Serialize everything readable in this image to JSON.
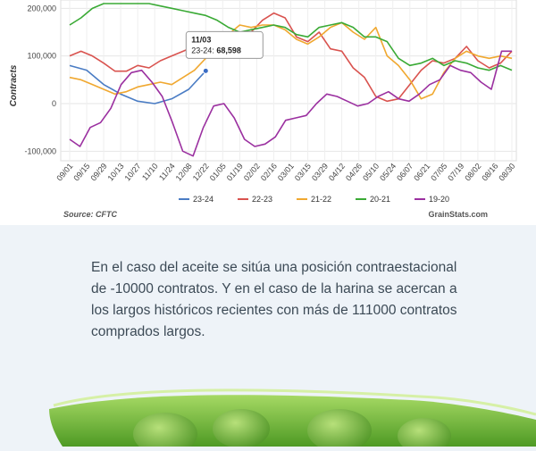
{
  "chart_data": {
    "type": "line",
    "ylabel": "Contracts",
    "y_ticks": [
      "-100,000",
      "0",
      "100,000",
      "200,000"
    ],
    "ylim": [
      -120000,
      210000
    ],
    "x_ticks": [
      "09/01",
      "09/15",
      "09/29",
      "10/13",
      "10/27",
      "11/10",
      "11/24",
      "12/08",
      "12/22",
      "01/05",
      "01/19",
      "02/02",
      "02/16",
      "03/01",
      "03/15",
      "03/29",
      "04/12",
      "04/26",
      "05/10",
      "05/24",
      "06/07",
      "06/21",
      "07/05",
      "07/19",
      "08/02",
      "08/16",
      "08/30"
    ],
    "grid": true,
    "legend_position": "bottom",
    "series": [
      {
        "name": "23-24",
        "color": "#4a7cc4",
        "values": [
          80000,
          70000,
          40000,
          20000,
          5000,
          0,
          10000,
          30000,
          68598
        ]
      },
      {
        "name": "22-23",
        "color": "#d9534f",
        "values": [
          100000,
          110000,
          100000,
          85000,
          68000,
          68000,
          80000,
          75000,
          90000,
          100000,
          110000,
          120000,
          130000,
          125000,
          145000,
          130000,
          150000,
          175000,
          190000,
          180000,
          140000,
          130000,
          150000,
          115000,
          110000,
          75000,
          55000,
          15000,
          5000,
          10000,
          40000,
          70000,
          90000,
          85000,
          95000,
          120000,
          90000,
          75000,
          85000,
          110000
        ]
      },
      {
        "name": "21-22",
        "color": "#f0a830",
        "values": [
          55000,
          50000,
          40000,
          30000,
          20000,
          25000,
          35000,
          40000,
          45000,
          40000,
          55000,
          70000,
          95000,
          120000,
          145000,
          165000,
          160000,
          165000,
          165000,
          155000,
          135000,
          125000,
          140000,
          160000,
          170000,
          150000,
          135000,
          160000,
          100000,
          80000,
          50000,
          10000,
          20000,
          65000,
          95000,
          110000,
          100000,
          95000,
          100000,
          95000
        ]
      },
      {
        "name": "20-21",
        "color": "#3aaa35",
        "values": [
          165000,
          180000,
          200000,
          210000,
          210000,
          210000,
          210000,
          210000,
          205000,
          200000,
          195000,
          190000,
          185000,
          175000,
          160000,
          150000,
          155000,
          160000,
          165000,
          160000,
          145000,
          140000,
          160000,
          165000,
          170000,
          160000,
          140000,
          140000,
          130000,
          95000,
          80000,
          85000,
          95000,
          80000,
          90000,
          85000,
          75000,
          70000,
          80000,
          70000
        ]
      },
      {
        "name": "19-20",
        "color": "#9b30a0",
        "values": [
          -75000,
          -90000,
          -50000,
          -40000,
          -10000,
          40000,
          65000,
          70000,
          45000,
          15000,
          -40000,
          -100000,
          -110000,
          -50000,
          -5000,
          0,
          -30000,
          -75000,
          -90000,
          -85000,
          -70000,
          -35000,
          -30000,
          -25000,
          0,
          20000,
          15000,
          5000,
          -5000,
          0,
          15000,
          25000,
          10000,
          5000,
          20000,
          40000,
          50000,
          80000,
          70000,
          65000,
          45000,
          30000,
          110000,
          110000
        ]
      }
    ],
    "annotation": {
      "title": "11/03",
      "series": "23-24",
      "value": "68,598"
    },
    "source": "Source: CFTC",
    "credit": "GrainStats.com"
  },
  "article": {
    "text": "En el caso del aceite se sitúa una posición contraestacional de -10000 contratos. Y en el caso de la harina se acercan a los largos históricos recientes con más de 111000 contratos comprados largos."
  },
  "colors": {
    "page_background": "#eef3f8",
    "text": "#3c4a56",
    "leaf_green": "#7cc03a",
    "pea_green": "#6db33a"
  }
}
